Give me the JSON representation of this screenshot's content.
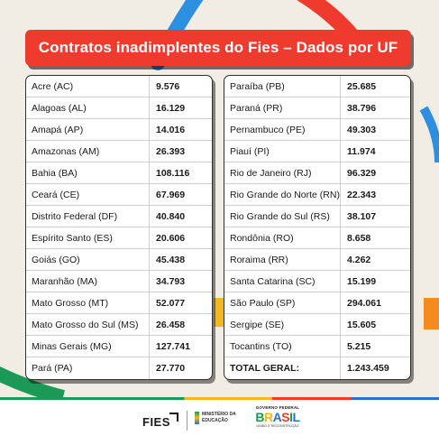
{
  "title": "Contratos inadimplentes do Fies – Dados por UF",
  "left_table": [
    {
      "uf": "Acre (AC)",
      "value": "9.576"
    },
    {
      "uf": "Alagoas (AL)",
      "value": "16.129"
    },
    {
      "uf": "Amapá (AP)",
      "value": "14.016"
    },
    {
      "uf": "Amazonas (AM)",
      "value": "26.393"
    },
    {
      "uf": "Bahia (BA)",
      "value": "108.116"
    },
    {
      "uf": "Ceará (CE)",
      "value": "67.969"
    },
    {
      "uf": "Distrito Federal (DF)",
      "value": "40.840"
    },
    {
      "uf": "Espírito Santo (ES)",
      "value": "20.606"
    },
    {
      "uf": "Goiás (GO)",
      "value": "45.438"
    },
    {
      "uf": "Maranhão (MA)",
      "value": "34.793"
    },
    {
      "uf": "Mato Grosso (MT)",
      "value": "52.077"
    },
    {
      "uf": "Mato Grosso do Sul (MS)",
      "value": "26.458"
    },
    {
      "uf": "Minas Gerais (MG)",
      "value": "127.741"
    },
    {
      "uf": "Pará (PA)",
      "value": "27.770"
    }
  ],
  "right_table": [
    {
      "uf": "Paraíba (PB)",
      "value": "25.685"
    },
    {
      "uf": "Paraná (PR)",
      "value": "38.796"
    },
    {
      "uf": "Pernambuco (PE)",
      "value": "49.303"
    },
    {
      "uf": "Piauí (PI)",
      "value": "11.974"
    },
    {
      "uf": "Rio de Janeiro (RJ)",
      "value": "96.329"
    },
    {
      "uf": "Rio Grande do Norte (RN)",
      "value": "22.343"
    },
    {
      "uf": "Rio Grande do Sul (RS)",
      "value": "38.107"
    },
    {
      "uf": "Rondônia (RO)",
      "value": "8.658"
    },
    {
      "uf": "Roraima (RR)",
      "value": "4.262"
    },
    {
      "uf": "Santa Catarina (SC)",
      "value": "15.199"
    },
    {
      "uf": "São Paulo (SP)",
      "value": "294.061"
    },
    {
      "uf": "Sergipe (SE)",
      "value": "15.605"
    },
    {
      "uf": "Tocantins (TO)",
      "value": "5.215"
    }
  ],
  "total": {
    "label": "TOTAL GERAL:",
    "value": "1.243.459"
  },
  "footer": {
    "fies_logo": "FIES",
    "ministry_line1": "MINISTÉRIO DA",
    "ministry_line2": "EDUCAÇÃO",
    "gov_top": "GOVERNO FEDERAL",
    "brasil_letters": [
      "B",
      "R",
      "A",
      "S",
      "I",
      "L"
    ],
    "brasil_colors": [
      "#1a9a56",
      "#f3b820",
      "#2c6fd1",
      "#ee3b2e",
      "#1a9a56",
      "#2c6fd1"
    ],
    "gov_sub": "UNIÃO E RECONSTRUÇÃO"
  },
  "colors": {
    "title_bg": "#ee3b2e",
    "background": "#f1ece4",
    "deco_blue": "#2c8fe0",
    "deco_red": "#ee3b2e",
    "deco_green": "#1a9a56",
    "deco_orange": "#f58a1f"
  }
}
